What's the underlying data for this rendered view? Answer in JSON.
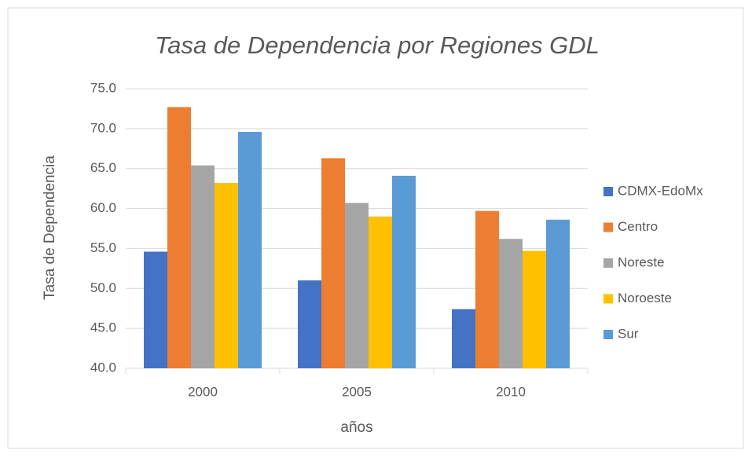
{
  "chart_data": {
    "type": "bar",
    "title": "Tasa de Dependencia por Regiones GDL",
    "xlabel": "años",
    "ylabel": "Tasa de Dependencia",
    "categories": [
      "2000",
      "2005",
      "2010"
    ],
    "series": [
      {
        "name": "CDMX-EdoMx",
        "color": "#4472c4",
        "values": [
          54.6,
          51.0,
          47.4
        ]
      },
      {
        "name": "Centro",
        "color": "#ed7d31",
        "values": [
          72.7,
          66.3,
          59.7
        ]
      },
      {
        "name": "Noreste",
        "color": "#a5a5a5",
        "values": [
          65.4,
          60.7,
          56.2
        ]
      },
      {
        "name": "Noroeste",
        "color": "#ffc000",
        "values": [
          63.2,
          59.0,
          54.7
        ]
      },
      {
        "name": "Sur",
        "color": "#5b9bd5",
        "values": [
          69.6,
          64.1,
          58.6
        ]
      }
    ],
    "ylim": [
      40,
      75
    ],
    "yticks": [
      {
        "value": 40,
        "label": "40.0"
      },
      {
        "value": 45,
        "label": "45.0"
      },
      {
        "value": 50,
        "label": "50.0"
      },
      {
        "value": 55,
        "label": "55.0"
      },
      {
        "value": 60,
        "label": "60.0"
      },
      {
        "value": 65,
        "label": "65.0"
      },
      {
        "value": 70,
        "label": "70.0"
      },
      {
        "value": 75,
        "label": "75.0"
      }
    ],
    "grid": true,
    "legend": "right"
  }
}
